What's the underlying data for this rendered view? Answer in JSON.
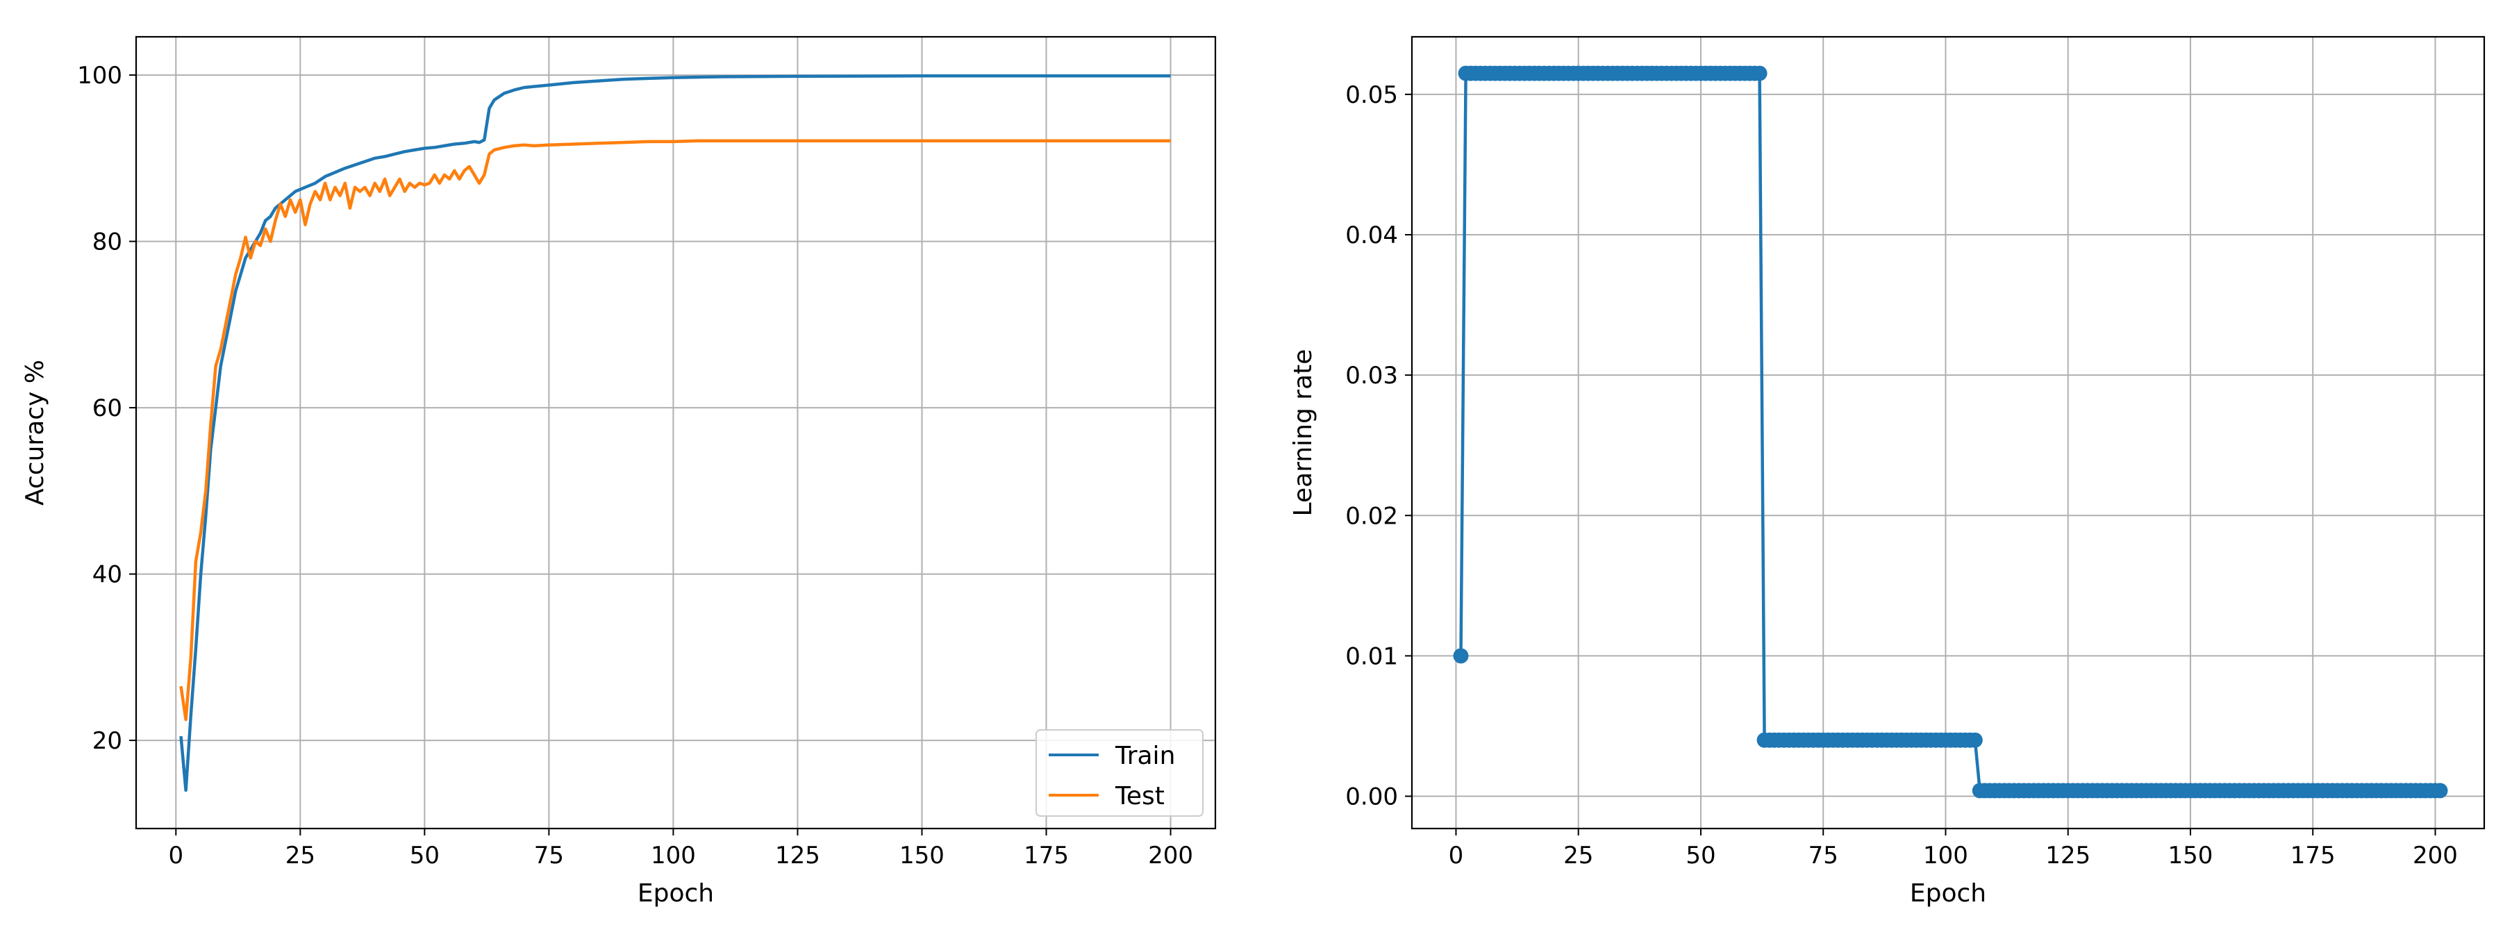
{
  "chart_data": [
    {
      "type": "line",
      "xlabel": "Epoch",
      "ylabel": "Accuracy %",
      "xlim": [
        -8,
        209
      ],
      "ylim": [
        9.4,
        104.6
      ],
      "xticks": [
        0,
        25,
        50,
        75,
        100,
        125,
        150,
        175,
        200
      ],
      "yticks": [
        20,
        40,
        60,
        80,
        100
      ],
      "grid": true,
      "legend_position": "lower-right",
      "series": [
        {
          "name": "Train",
          "color": "#1f77b4",
          "points": [
            [
              1,
              20.5
            ],
            [
              2,
              14
            ],
            [
              3,
              23
            ],
            [
              4,
              31
            ],
            [
              5,
              40
            ],
            [
              6,
              47
            ],
            [
              7,
              55
            ],
            [
              8,
              60
            ],
            [
              9,
              65
            ],
            [
              10,
              68
            ],
            [
              11,
              71
            ],
            [
              12,
              74
            ],
            [
              13,
              76
            ],
            [
              14,
              78
            ],
            [
              15,
              79
            ],
            [
              16,
              80
            ],
            [
              17,
              81
            ],
            [
              18,
              82.5
            ],
            [
              19,
              83
            ],
            [
              20,
              84
            ],
            [
              22,
              85
            ],
            [
              24,
              86
            ],
            [
              26,
              86.5
            ],
            [
              28,
              87
            ],
            [
              30,
              87.8
            ],
            [
              32,
              88.3
            ],
            [
              34,
              88.8
            ],
            [
              36,
              89.2
            ],
            [
              38,
              89.6
            ],
            [
              40,
              90
            ],
            [
              42,
              90.2
            ],
            [
              44,
              90.5
            ],
            [
              46,
              90.8
            ],
            [
              48,
              91
            ],
            [
              50,
              91.2
            ],
            [
              52,
              91.3
            ],
            [
              54,
              91.5
            ],
            [
              56,
              91.7
            ],
            [
              58,
              91.8
            ],
            [
              60,
              92
            ],
            [
              61,
              91.9
            ],
            [
              62,
              92.2
            ],
            [
              63,
              96
            ],
            [
              64,
              97
            ],
            [
              66,
              97.8
            ],
            [
              68,
              98.2
            ],
            [
              70,
              98.5
            ],
            [
              75,
              98.8
            ],
            [
              80,
              99.1
            ],
            [
              85,
              99.3
            ],
            [
              90,
              99.5
            ],
            [
              95,
              99.6
            ],
            [
              100,
              99.7
            ],
            [
              110,
              99.8
            ],
            [
              125,
              99.85
            ],
            [
              150,
              99.9
            ],
            [
              175,
              99.9
            ],
            [
              200,
              99.9
            ]
          ]
        },
        {
          "name": "Test",
          "color": "#ff7f0e",
          "points": [
            [
              1,
              26.5
            ],
            [
              2,
              22.5
            ],
            [
              3,
              30
            ],
            [
              4,
              41.5
            ],
            [
              5,
              45
            ],
            [
              6,
              50
            ],
            [
              7,
              58
            ],
            [
              8,
              65
            ],
            [
              9,
              67
            ],
            [
              10,
              70
            ],
            [
              11,
              73
            ],
            [
              12,
              76
            ],
            [
              13,
              78
            ],
            [
              14,
              80.5
            ],
            [
              15,
              78
            ],
            [
              16,
              80
            ],
            [
              17,
              79.5
            ],
            [
              18,
              81.5
            ],
            [
              19,
              80
            ],
            [
              20,
              82.5
            ],
            [
              21,
              84.5
            ],
            [
              22,
              83
            ],
            [
              23,
              85
            ],
            [
              24,
              83.5
            ],
            [
              25,
              85
            ],
            [
              26,
              82
            ],
            [
              27,
              84.5
            ],
            [
              28,
              86
            ],
            [
              29,
              85
            ],
            [
              30,
              87
            ],
            [
              31,
              85
            ],
            [
              32,
              86.5
            ],
            [
              33,
              85.5
            ],
            [
              34,
              87
            ],
            [
              35,
              84
            ],
            [
              36,
              86.5
            ],
            [
              37,
              86
            ],
            [
              38,
              86.5
            ],
            [
              39,
              85.5
            ],
            [
              40,
              87
            ],
            [
              41,
              86
            ],
            [
              42,
              87.5
            ],
            [
              43,
              85.5
            ],
            [
              44,
              86.5
            ],
            [
              45,
              87.5
            ],
            [
              46,
              86
            ],
            [
              47,
              87
            ],
            [
              48,
              86.5
            ],
            [
              49,
              87
            ],
            [
              50,
              86.8
            ],
            [
              51,
              87
            ],
            [
              52,
              88
            ],
            [
              53,
              87
            ],
            [
              54,
              88
            ],
            [
              55,
              87.5
            ],
            [
              56,
              88.5
            ],
            [
              57,
              87.5
            ],
            [
              58,
              88.5
            ],
            [
              59,
              89
            ],
            [
              60,
              88
            ],
            [
              61,
              87
            ],
            [
              62,
              88
            ],
            [
              63,
              90.5
            ],
            [
              64,
              91
            ],
            [
              66,
              91.3
            ],
            [
              68,
              91.5
            ],
            [
              70,
              91.6
            ],
            [
              72,
              91.5
            ],
            [
              75,
              91.6
            ],
            [
              80,
              91.7
            ],
            [
              85,
              91.8
            ],
            [
              90,
              91.9
            ],
            [
              95,
              92
            ],
            [
              100,
              92
            ],
            [
              105,
              92.1
            ],
            [
              110,
              92.1
            ],
            [
              120,
              92.1
            ],
            [
              130,
              92.1
            ],
            [
              140,
              92.1
            ],
            [
              150,
              92.1
            ],
            [
              160,
              92.1
            ],
            [
              170,
              92.1
            ],
            [
              180,
              92.1
            ],
            [
              190,
              92.1
            ],
            [
              200,
              92.1
            ]
          ]
        }
      ]
    },
    {
      "type": "line",
      "xlabel": "Epoch",
      "ylabel": "Learning rate",
      "xlim": [
        -9,
        210
      ],
      "ylim": [
        -0.0023,
        0.0541
      ],
      "xticks": [
        0,
        25,
        50,
        75,
        100,
        125,
        150,
        175,
        200
      ],
      "yticks": [
        0.0,
        0.01,
        0.02,
        0.03,
        0.04,
        0.05
      ],
      "ytick_labels": [
        "0.00",
        "0.01",
        "0.02",
        "0.03",
        "0.04",
        "0.05"
      ],
      "grid": true,
      "markers": true,
      "series": [
        {
          "color": "#1f77b4",
          "segments": [
            {
              "from": 1,
              "to": 1,
              "value": 0.01
            },
            {
              "from": 2,
              "to": 62,
              "value": 0.0515
            },
            {
              "from": 63,
              "to": 106,
              "value": 0.004
            },
            {
              "from": 107,
              "to": 201,
              "value": 0.0004
            }
          ]
        }
      ]
    }
  ]
}
